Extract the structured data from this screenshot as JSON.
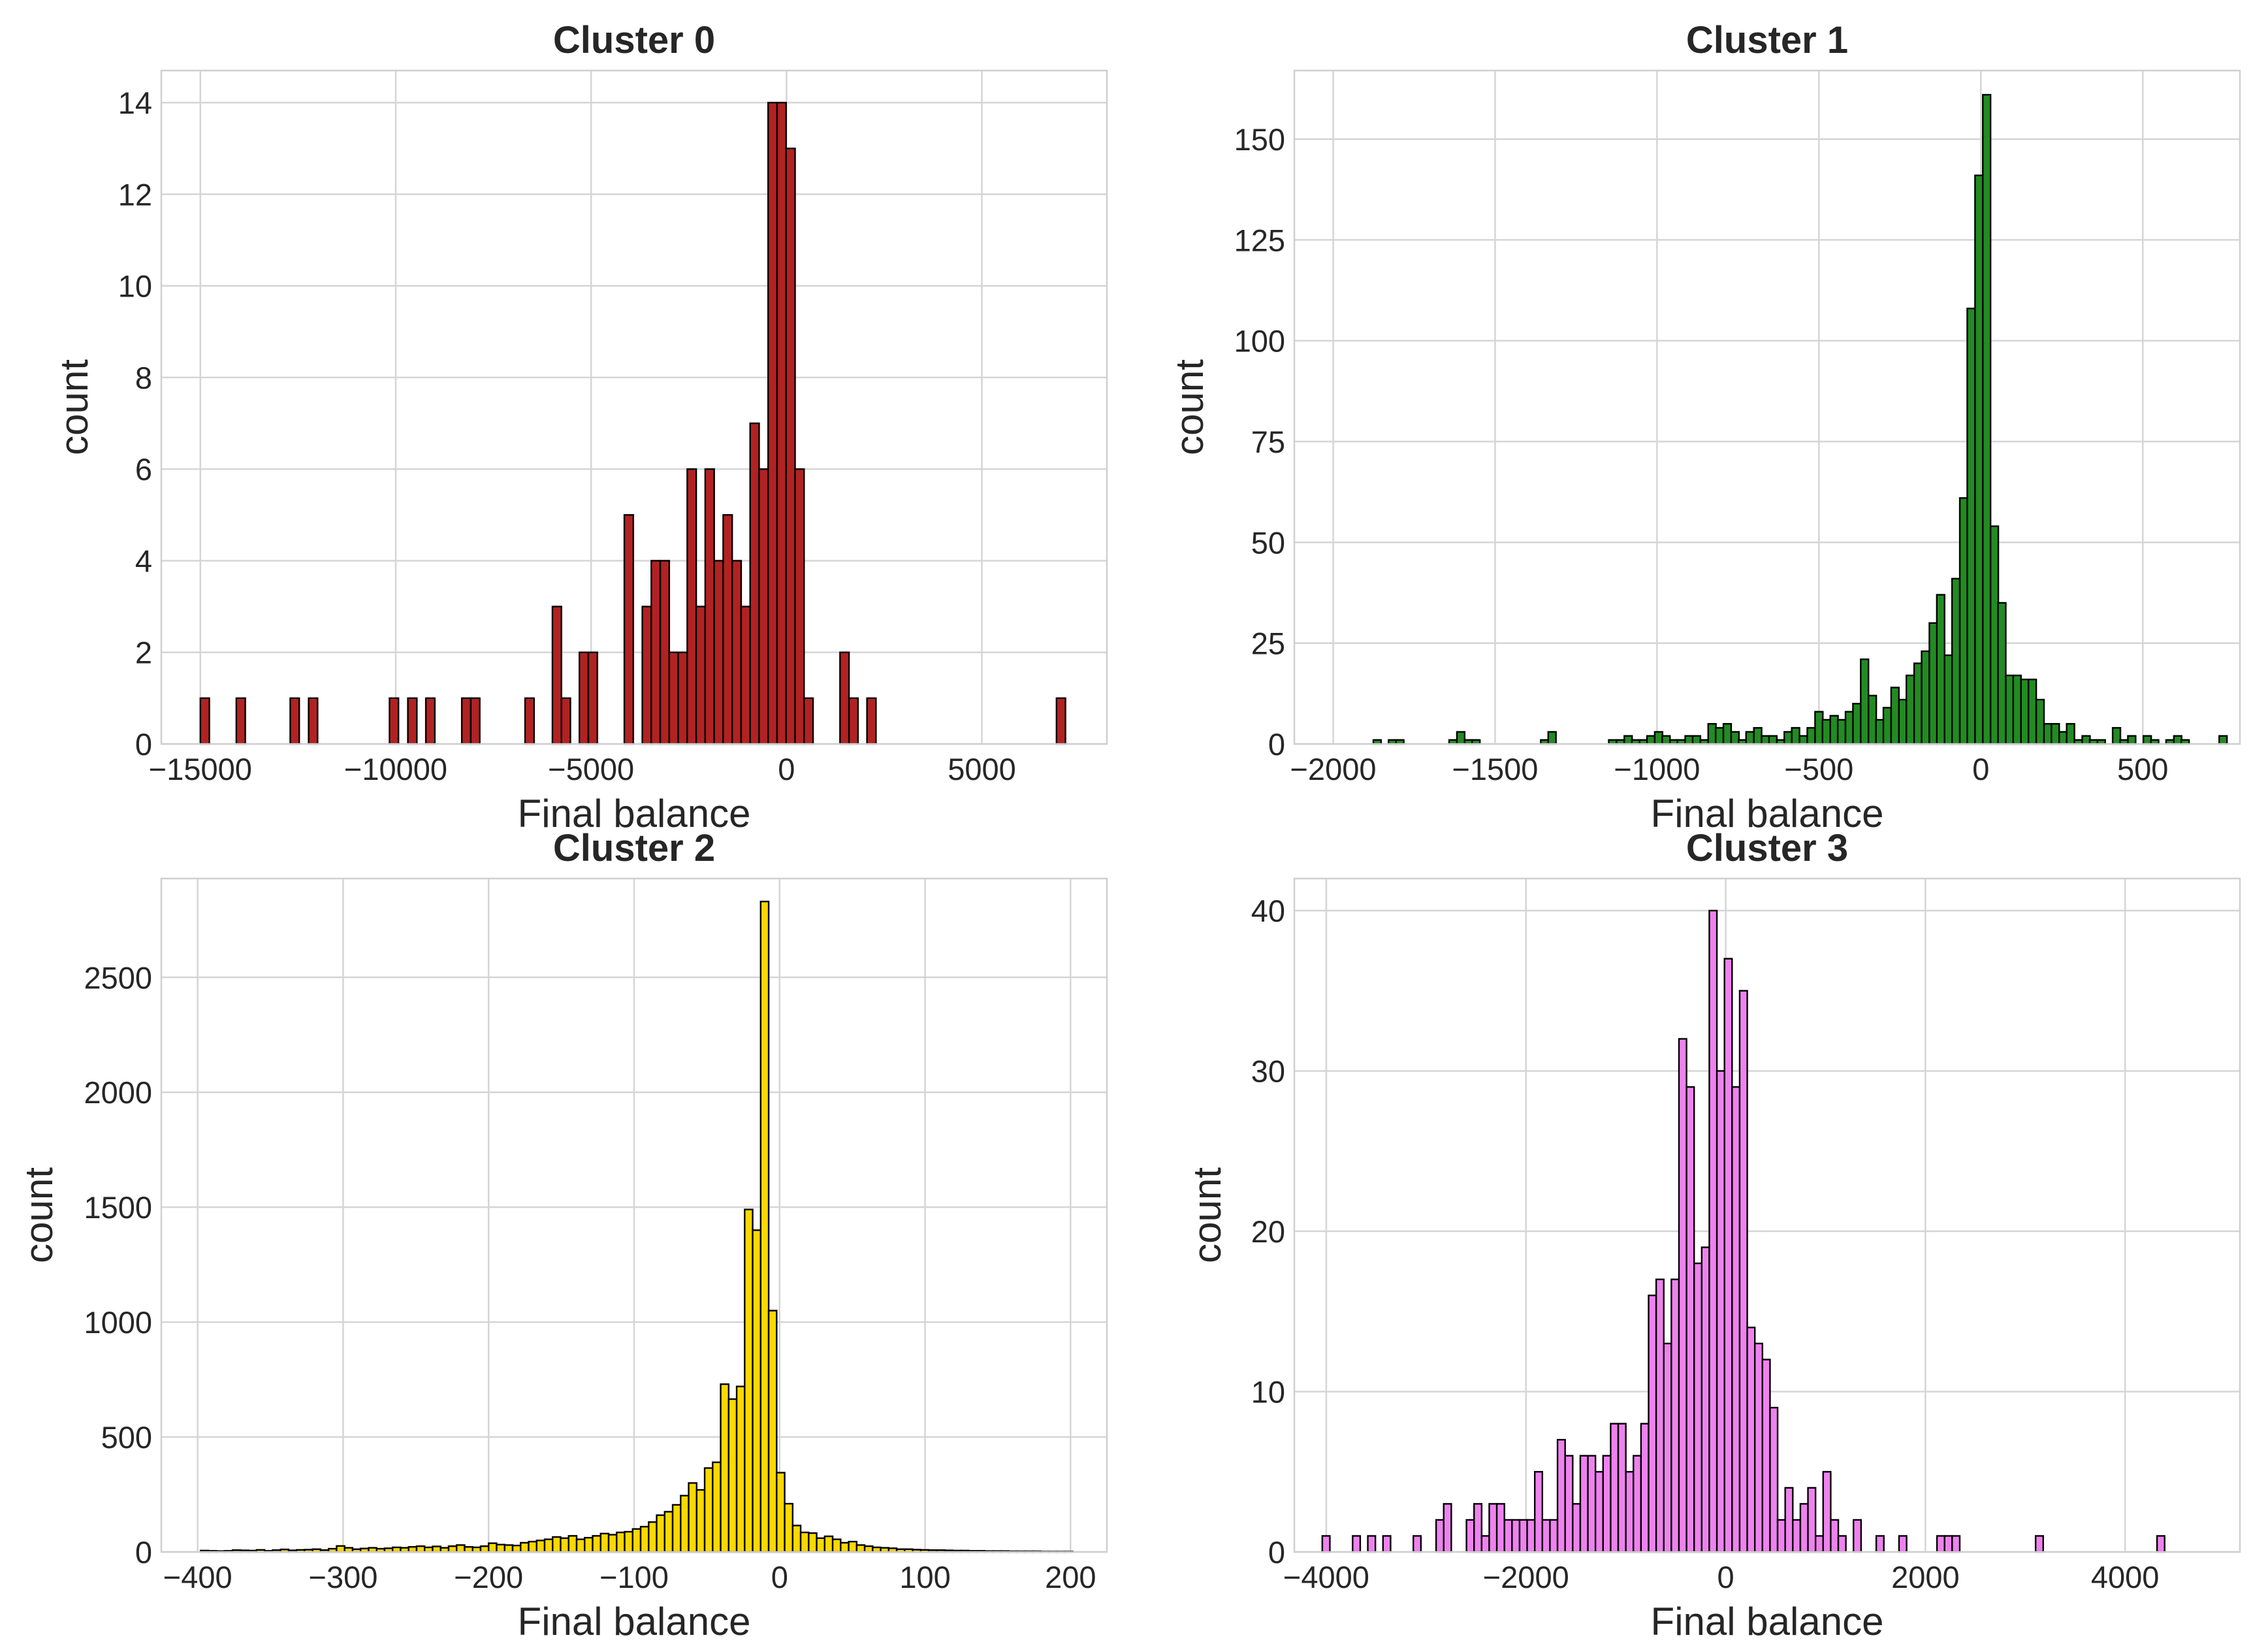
{
  "chart_data": [
    {
      "type": "bar",
      "title": "Cluster 0",
      "xlabel": "Final balance",
      "ylabel": "count",
      "color": "#B22222",
      "grid": true,
      "xlim": [
        -16000,
        8200
      ],
      "ylim": [
        0,
        14.7
      ],
      "xticks": [
        -15000,
        -10000,
        -5000,
        0,
        5000
      ],
      "yticks": [
        0,
        2,
        4,
        6,
        8,
        10,
        12,
        14
      ],
      "bin_width": 230,
      "bins": [
        [
          -15000,
          1
        ],
        [
          -14080,
          1
        ],
        [
          -12700,
          1
        ],
        [
          -12230,
          1
        ],
        [
          -10160,
          1
        ],
        [
          -9690,
          1
        ],
        [
          -9230,
          1
        ],
        [
          -8310,
          1
        ],
        [
          -8080,
          1
        ],
        [
          -6690,
          1
        ],
        [
          -5990,
          3
        ],
        [
          -5760,
          1
        ],
        [
          -5300,
          2
        ],
        [
          -5070,
          2
        ],
        [
          -4150,
          5
        ],
        [
          -3920,
          0
        ],
        [
          -3690,
          3
        ],
        [
          -3460,
          4
        ],
        [
          -3230,
          4
        ],
        [
          -3000,
          2
        ],
        [
          -2770,
          2
        ],
        [
          -2540,
          6
        ],
        [
          -2310,
          3
        ],
        [
          -2080,
          6
        ],
        [
          -1850,
          4
        ],
        [
          -1620,
          5
        ],
        [
          -1390,
          4
        ],
        [
          -1160,
          3
        ],
        [
          -930,
          7
        ],
        [
          -700,
          6
        ],
        [
          -470,
          14
        ],
        [
          -240,
          14
        ],
        [
          -10,
          13
        ],
        [
          220,
          6
        ],
        [
          450,
          1
        ],
        [
          1370,
          2
        ],
        [
          1600,
          1
        ],
        [
          2060,
          1
        ],
        [
          6910,
          1
        ]
      ]
    },
    {
      "type": "bar",
      "title": "Cluster 1",
      "xlabel": "Final balance",
      "ylabel": "count",
      "color": "#228B22",
      "grid": true,
      "xlim": [
        -2120,
        800
      ],
      "ylim": [
        0,
        167
      ],
      "xticks": [
        -2000,
        -1500,
        -1000,
        -500,
        0,
        500
      ],
      "yticks": [
        0,
        25,
        50,
        75,
        100,
        125,
        150
      ],
      "bin_width": 24,
      "bins": [
        [
          -1876,
          1
        ],
        [
          -1829,
          1
        ],
        [
          -1806,
          1
        ],
        [
          -1642,
          1
        ],
        [
          -1618,
          3
        ],
        [
          -1594,
          1
        ],
        [
          -1571,
          1
        ],
        [
          -1359,
          1
        ],
        [
          -1336,
          3
        ],
        [
          -1149,
          1
        ],
        [
          -1125,
          1
        ],
        [
          -1101,
          2
        ],
        [
          -1078,
          1
        ],
        [
          -1054,
          1
        ],
        [
          -1031,
          2
        ],
        [
          -1007,
          3
        ],
        [
          -984,
          2
        ],
        [
          -960,
          1
        ],
        [
          -937,
          1
        ],
        [
          -913,
          2
        ],
        [
          -890,
          2
        ],
        [
          -866,
          1
        ],
        [
          -842,
          5
        ],
        [
          -819,
          4
        ],
        [
          -795,
          5
        ],
        [
          -771,
          3
        ],
        [
          -748,
          1
        ],
        [
          -725,
          3
        ],
        [
          -701,
          4
        ],
        [
          -677,
          2
        ],
        [
          -654,
          2
        ],
        [
          -630,
          1
        ],
        [
          -607,
          3
        ],
        [
          -584,
          4
        ],
        [
          -560,
          2
        ],
        [
          -536,
          4
        ],
        [
          -512,
          8
        ],
        [
          -489,
          6
        ],
        [
          -465,
          7
        ],
        [
          -442,
          6
        ],
        [
          -418,
          8
        ],
        [
          -395,
          10
        ],
        [
          -371,
          21
        ],
        [
          -347,
          12
        ],
        [
          -324,
          6
        ],
        [
          -301,
          9
        ],
        [
          -277,
          14
        ],
        [
          -253,
          11
        ],
        [
          -230,
          17
        ],
        [
          -206,
          20
        ],
        [
          -183,
          23
        ],
        [
          -159,
          30
        ],
        [
          -136,
          37
        ],
        [
          -112,
          22
        ],
        [
          -89,
          41
        ],
        [
          -65,
          61
        ],
        [
          -42,
          108
        ],
        [
          -18,
          141
        ],
        [
          6,
          161
        ],
        [
          30,
          54
        ],
        [
          53,
          35
        ],
        [
          77,
          17
        ],
        [
          100,
          17
        ],
        [
          124,
          16
        ],
        [
          147,
          16
        ],
        [
          171,
          11
        ],
        [
          195,
          5
        ],
        [
          218,
          5
        ],
        [
          242,
          3
        ],
        [
          265,
          5
        ],
        [
          289,
          1
        ],
        [
          313,
          2
        ],
        [
          336,
          1
        ],
        [
          360,
          1
        ],
        [
          407,
          4
        ],
        [
          430,
          1
        ],
        [
          454,
          2
        ],
        [
          502,
          2
        ],
        [
          525,
          1
        ],
        [
          572,
          1
        ],
        [
          596,
          2
        ],
        [
          619,
          1
        ],
        [
          736,
          2
        ]
      ]
    },
    {
      "type": "bar",
      "title": "Cluster 2",
      "xlabel": "Final balance",
      "ylabel": "count",
      "color": "#FFD700",
      "grid": true,
      "xlim": [
        -425,
        225
      ],
      "ylim": [
        0,
        2930
      ],
      "xticks": [
        -400,
        -300,
        -200,
        -100,
        0,
        100,
        200
      ],
      "yticks": [
        0,
        500,
        1000,
        1500,
        2000,
        2500
      ],
      "bin_width": 5.5,
      "bins": [
        [
          -398.0,
          6
        ],
        [
          -392.5,
          5
        ],
        [
          -387.0,
          4
        ],
        [
          -381.5,
          5
        ],
        [
          -376.0,
          8
        ],
        [
          -370.5,
          7
        ],
        [
          -365.0,
          6
        ],
        [
          -359.5,
          9
        ],
        [
          -354.0,
          5
        ],
        [
          -348.5,
          8
        ],
        [
          -343.0,
          11
        ],
        [
          -337.5,
          7
        ],
        [
          -332.0,
          9
        ],
        [
          -326.5,
          10
        ],
        [
          -321.0,
          12
        ],
        [
          -315.5,
          8
        ],
        [
          -310.0,
          14
        ],
        [
          -304.5,
          26
        ],
        [
          -299.0,
          18
        ],
        [
          -293.5,
          12
        ],
        [
          -288.0,
          15
        ],
        [
          -282.5,
          18
        ],
        [
          -277.0,
          14
        ],
        [
          -271.5,
          16
        ],
        [
          -266.0,
          20
        ],
        [
          -260.5,
          18
        ],
        [
          -255.0,
          22
        ],
        [
          -249.5,
          25
        ],
        [
          -244.0,
          20
        ],
        [
          -238.5,
          24
        ],
        [
          -233.0,
          18
        ],
        [
          -227.5,
          25
        ],
        [
          -222.0,
          30
        ],
        [
          -216.5,
          22
        ],
        [
          -211.0,
          20
        ],
        [
          -205.5,
          25
        ],
        [
          -200.0,
          38
        ],
        [
          -194.5,
          32
        ],
        [
          -189.0,
          30
        ],
        [
          -183.5,
          28
        ],
        [
          -178.0,
          40
        ],
        [
          -172.5,
          45
        ],
        [
          -167.0,
          50
        ],
        [
          -161.5,
          55
        ],
        [
          -156.0,
          65
        ],
        [
          -150.5,
          60
        ],
        [
          -145.0,
          70
        ],
        [
          -139.5,
          55
        ],
        [
          -134.0,
          62
        ],
        [
          -128.5,
          70
        ],
        [
          -123.0,
          80
        ],
        [
          -117.5,
          75
        ],
        [
          -112.0,
          85
        ],
        [
          -106.5,
          88
        ],
        [
          -101.0,
          100
        ],
        [
          -95.5,
          110
        ],
        [
          -90.0,
          130
        ],
        [
          -84.5,
          160
        ],
        [
          -79.0,
          175
        ],
        [
          -73.5,
          205
        ],
        [
          -68.0,
          245
        ],
        [
          -62.5,
          300
        ],
        [
          -57.0,
          270
        ],
        [
          -51.5,
          365
        ],
        [
          -46.0,
          390
        ],
        [
          -40.5,
          730
        ],
        [
          -35.0,
          665
        ],
        [
          -29.5,
          720
        ],
        [
          -24.0,
          1490
        ],
        [
          -18.5,
          1400
        ],
        [
          -13.0,
          2830
        ],
        [
          -7.5,
          1050
        ],
        [
          -2.0,
          345
        ],
        [
          3.5,
          210
        ],
        [
          9.0,
          115
        ],
        [
          14.5,
          85
        ],
        [
          20.0,
          82
        ],
        [
          25.5,
          60
        ],
        [
          31.0,
          68
        ],
        [
          36.5,
          55
        ],
        [
          42.0,
          40
        ],
        [
          47.5,
          45
        ],
        [
          53.0,
          30
        ],
        [
          58.5,
          25
        ],
        [
          64.0,
          20
        ],
        [
          69.5,
          18
        ],
        [
          75.0,
          16
        ],
        [
          80.5,
          12
        ],
        [
          86.0,
          12
        ],
        [
          91.5,
          10
        ],
        [
          97.0,
          9
        ],
        [
          102.5,
          8
        ],
        [
          108.0,
          8
        ],
        [
          113.5,
          7
        ],
        [
          119.0,
          6
        ],
        [
          124.5,
          6
        ],
        [
          130.0,
          5
        ],
        [
          135.5,
          5
        ],
        [
          141.0,
          4
        ],
        [
          146.5,
          4
        ],
        [
          152.0,
          4
        ],
        [
          157.5,
          3
        ],
        [
          163.0,
          3
        ],
        [
          168.5,
          3
        ],
        [
          174.0,
          3
        ],
        [
          179.5,
          2
        ],
        [
          185.0,
          2
        ],
        [
          190.5,
          2
        ],
        [
          196.0,
          2
        ]
      ]
    },
    {
      "type": "bar",
      "title": "Cluster 3",
      "xlabel": "Final balance",
      "ylabel": "count",
      "color": "#EE82EE",
      "grid": true,
      "xlim": [
        -4320,
        5150
      ],
      "ylim": [
        0,
        42
      ],
      "xticks": [
        -4000,
        -2000,
        0,
        2000,
        4000
      ],
      "yticks": [
        0,
        10,
        20,
        30,
        40
      ],
      "bin_width": 76,
      "bins": [
        [
          -4040,
          1
        ],
        [
          -3736,
          1
        ],
        [
          -3584,
          1
        ],
        [
          -3432,
          1
        ],
        [
          -3128,
          1
        ],
        [
          -2900,
          2
        ],
        [
          -2824,
          3
        ],
        [
          -2596,
          2
        ],
        [
          -2520,
          3
        ],
        [
          -2444,
          1
        ],
        [
          -2368,
          3
        ],
        [
          -2292,
          3
        ],
        [
          -2216,
          2
        ],
        [
          -2140,
          2
        ],
        [
          -2064,
          2
        ],
        [
          -1988,
          2
        ],
        [
          -1912,
          5
        ],
        [
          -1836,
          2
        ],
        [
          -1760,
          2
        ],
        [
          -1684,
          7
        ],
        [
          -1608,
          6
        ],
        [
          -1532,
          3
        ],
        [
          -1456,
          6
        ],
        [
          -1380,
          6
        ],
        [
          -1304,
          5
        ],
        [
          -1228,
          6
        ],
        [
          -1152,
          8
        ],
        [
          -1076,
          8
        ],
        [
          -1000,
          5
        ],
        [
          -924,
          6
        ],
        [
          -848,
          8
        ],
        [
          -772,
          16
        ],
        [
          -696,
          17
        ],
        [
          -620,
          13
        ],
        [
          -544,
          17
        ],
        [
          -468,
          32
        ],
        [
          -392,
          29
        ],
        [
          -316,
          18
        ],
        [
          -240,
          19
        ],
        [
          -164,
          40
        ],
        [
          -88,
          30
        ],
        [
          -12,
          37
        ],
        [
          64,
          29
        ],
        [
          140,
          35
        ],
        [
          216,
          14
        ],
        [
          292,
          13
        ],
        [
          368,
          12
        ],
        [
          444,
          9
        ],
        [
          520,
          2
        ],
        [
          596,
          4
        ],
        [
          672,
          2
        ],
        [
          748,
          3
        ],
        [
          824,
          4
        ],
        [
          900,
          1
        ],
        [
          976,
          5
        ],
        [
          1052,
          2
        ],
        [
          1128,
          1
        ],
        [
          1280,
          2
        ],
        [
          1508,
          1
        ],
        [
          1736,
          1
        ],
        [
          2116,
          1
        ],
        [
          2192,
          1
        ],
        [
          2268,
          1
        ],
        [
          3104,
          1
        ],
        [
          4320,
          1
        ]
      ]
    }
  ]
}
